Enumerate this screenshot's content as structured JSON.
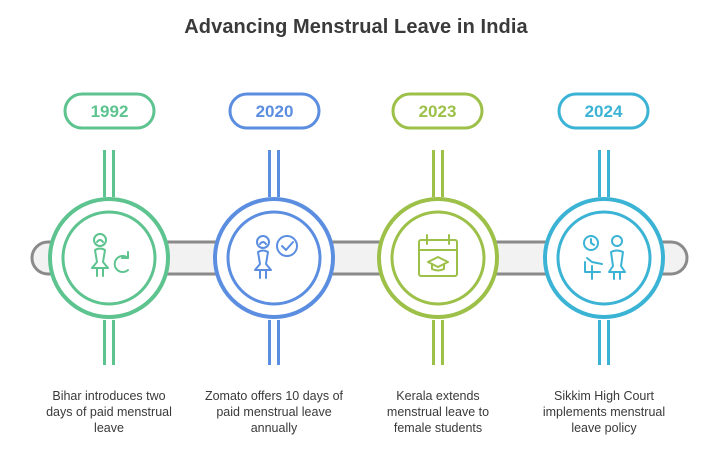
{
  "title": "Advancing Menstrual Leave in India",
  "milestones": [
    {
      "year": "1992",
      "description": "Bihar introduces two days of paid menstrual leave",
      "color": "#5dc38f",
      "icon": "woman-cycle-icon"
    },
    {
      "year": "2020",
      "description": "Zomato offers 10 days of paid menstrual leave annually",
      "color": "#5b8ee0",
      "icon": "woman-check-icon"
    },
    {
      "year": "2023",
      "description": "Kerala extends menstrual leave to female students",
      "color": "#9cc048",
      "icon": "calendar-graduation-icon"
    },
    {
      "year": "2024",
      "description": "Sikkim High Court implements menstrual leave policy",
      "color": "#3bb3d5",
      "icon": "clock-people-icon"
    }
  ],
  "colors": {
    "title": "#3a3a3a",
    "text": "#3a3a3a",
    "bar_fill": "#f2f2f2",
    "bar_stroke": "#8a8a8a"
  }
}
